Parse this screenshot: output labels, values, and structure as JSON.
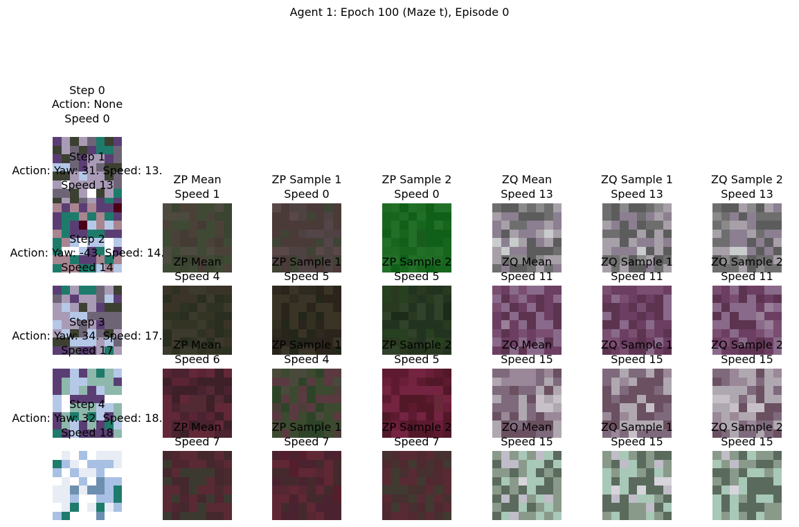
{
  "figure": {
    "title": "Agent 1: Epoch 100 (Maze t), Episode 0"
  },
  "rows": [
    {
      "step": "Step 0",
      "action": "Action: None",
      "speed": "Speed 0",
      "obs_palette": [
        "#1e7b6b",
        "#5a3e73",
        "#a99bb6",
        "#6d6576",
        "#3b4030",
        "#b6c8e8",
        "#ffffff"
      ],
      "panels": []
    },
    {
      "step": "Step 1",
      "action": "Action: Yaw: 31. Speed: 13.",
      "speed": "Speed 13",
      "obs_palette": [
        "#4a0018",
        "#a88590",
        "#1e7b6b",
        "#5a3e73",
        "#b6c8e8",
        "#ffffff"
      ],
      "panels": [
        {
          "title": "ZP Mean",
          "speed": "Speed 1",
          "palette": [
            "#4d4a40",
            "#3f4a34",
            "#3a4430",
            "#4a4238",
            "#443c34"
          ]
        },
        {
          "title": "ZP Sample 1",
          "speed": "Speed 0",
          "palette": [
            "#5a4848",
            "#4e4242",
            "#4a3a38",
            "#3f4434",
            "#544648"
          ]
        },
        {
          "title": "ZP Sample 2",
          "speed": "Speed 0",
          "palette": [
            "#1f6b24",
            "#18661d",
            "#226f28",
            "#10601a",
            "#1a5c1e"
          ]
        },
        {
          "title": "ZQ Mean",
          "speed": "Speed 13",
          "palette": [
            "#8a8a8a",
            "#6e6e6e",
            "#5c5c5c",
            "#a7a0a8",
            "#8c7f91",
            "#c8cccc"
          ]
        },
        {
          "title": "ZQ Sample 1",
          "speed": "Speed 13",
          "palette": [
            "#8a8a8a",
            "#6e6e6e",
            "#5c5c5c",
            "#a7a0a8",
            "#8c7f91",
            "#c8cccc"
          ]
        },
        {
          "title": "ZQ Sample 2",
          "speed": "Speed 13",
          "palette": [
            "#8a8a8a",
            "#6e6e6e",
            "#5c5c5c",
            "#a7a0a8",
            "#8c7f91",
            "#c8cccc"
          ]
        }
      ]
    },
    {
      "step": "Step 2",
      "action": "Action: Yaw: -43. Speed: 14.",
      "speed": "Speed 14",
      "obs_palette": [
        "#1e7b6b",
        "#5a3e73",
        "#6d6576",
        "#a99bb6",
        "#3b4030",
        "#b6c8e8",
        "#ffffff"
      ],
      "panels": [
        {
          "title": "ZP Mean",
          "speed": "Speed 4",
          "palette": [
            "#3a3428",
            "#2e3222",
            "#3c3a2c",
            "#2a2e20",
            "#343424"
          ]
        },
        {
          "title": "ZP Sample 1",
          "speed": "Speed 5",
          "palette": [
            "#2f2a1f",
            "#2a241c",
            "#3a3426",
            "#23271a",
            "#333022"
          ]
        },
        {
          "title": "ZP Sample 2",
          "speed": "Speed 5",
          "palette": [
            "#27401f",
            "#2a3a20",
            "#223320",
            "#30422a",
            "#1d2c18"
          ]
        },
        {
          "title": "ZQ Mean",
          "speed": "Speed 11",
          "palette": [
            "#7a4e70",
            "#6c3e62",
            "#8a6a8a",
            "#5c3450",
            "#9a7f98"
          ]
        },
        {
          "title": "ZQ Sample 1",
          "speed": "Speed 11",
          "palette": [
            "#7a4e70",
            "#6c3e62",
            "#8a6a8a",
            "#5c3450",
            "#9a7f98"
          ]
        },
        {
          "title": "ZQ Sample 2",
          "speed": "Speed 11",
          "palette": [
            "#7a4e70",
            "#6c3e62",
            "#8a6a8a",
            "#5c3450",
            "#9a7f98"
          ]
        }
      ]
    },
    {
      "step": "Step 3",
      "action": "Action: Yaw: 34. Speed: 17.",
      "speed": "Speed 17",
      "obs_palette": [
        "#1e7b6b",
        "#5a3e73",
        "#8fb8ac",
        "#b6c8e8",
        "#ffffff"
      ],
      "panels": [
        {
          "title": "ZP Mean",
          "speed": "Speed 6",
          "palette": [
            "#5a2434",
            "#4a2230",
            "#622838",
            "#3e2028",
            "#522a34"
          ]
        },
        {
          "title": "ZP Sample 1",
          "speed": "Speed 4",
          "palette": [
            "#4a4a3c",
            "#3c4a30",
            "#5a3a40",
            "#2e4428",
            "#4c3e38"
          ]
        },
        {
          "title": "ZP Sample 2",
          "speed": "Speed 5",
          "palette": [
            "#6a1e38",
            "#5e1a30",
            "#742440",
            "#521828",
            "#68283a"
          ]
        },
        {
          "title": "ZQ Mean",
          "speed": "Speed 15",
          "palette": [
            "#9a8898",
            "#7e6a7c",
            "#b0a8b0",
            "#6a5060",
            "#c8c0c8"
          ]
        },
        {
          "title": "ZQ Sample 1",
          "speed": "Speed 15",
          "palette": [
            "#9a8898",
            "#7e6a7c",
            "#b0a8b0",
            "#6a5060",
            "#c8c0c8"
          ]
        },
        {
          "title": "ZQ Sample 2",
          "speed": "Speed 15",
          "palette": [
            "#9a8898",
            "#7e6a7c",
            "#b0a8b0",
            "#6a5060",
            "#c8c0c8"
          ]
        }
      ]
    },
    {
      "step": "Step 4",
      "action": "Action: Yaw: 32. Speed: 18.",
      "speed": "Speed 18",
      "obs_palette": [
        "#1e7b6b",
        "#ffffff",
        "#e8ecf4",
        "#a8c0e4",
        "#6d8fb0"
      ],
      "panels": [
        {
          "title": "ZP Mean",
          "speed": "Speed 7",
          "palette": [
            "#4e2630",
            "#44282e",
            "#5a2a34",
            "#3c3a30",
            "#4a2a2e"
          ]
        },
        {
          "title": "ZP Sample 1",
          "speed": "Speed 7",
          "palette": [
            "#541e2c",
            "#4a2230",
            "#602834",
            "#442a2c",
            "#562632"
          ]
        },
        {
          "title": "ZP Sample 2",
          "speed": "Speed 7",
          "palette": [
            "#4e2a30",
            "#463030",
            "#582a34",
            "#403a30",
            "#502a30"
          ]
        },
        {
          "title": "ZQ Mean",
          "speed": "Speed 15",
          "palette": [
            "#c0bcc8",
            "#8a9a8a",
            "#5a6a5c",
            "#a8c8b8",
            "#d8d4dc"
          ]
        },
        {
          "title": "ZQ Sample 1",
          "speed": "Speed 15",
          "palette": [
            "#c0bcc8",
            "#8a9a8a",
            "#5a6a5c",
            "#a8c8b8",
            "#d8d4dc"
          ]
        },
        {
          "title": "ZQ Sample 2",
          "speed": "Speed 15",
          "palette": [
            "#c0bcc8",
            "#8a9a8a",
            "#5a6a5c",
            "#a8c8b8",
            "#d8d4dc"
          ]
        }
      ]
    }
  ]
}
